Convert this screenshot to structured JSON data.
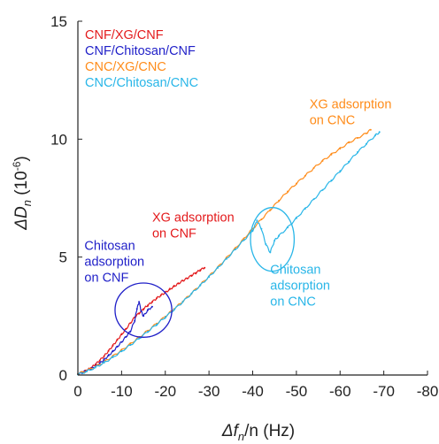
{
  "chart_data": {
    "type": "line",
    "xlabel": {
      "prefix": "Δf",
      "sub": "n",
      "suffix": "/n (Hz)"
    },
    "ylabel": {
      "prefix": "ΔD",
      "sub": "n",
      "suffix": " (10",
      "sup": "-6",
      "close": ")"
    },
    "xlim": [
      0,
      -80
    ],
    "ylim": [
      0,
      15
    ],
    "x_ticks": [
      0,
      -10,
      -20,
      -30,
      -40,
      -50,
      -60,
      -70,
      -80
    ],
    "x_tick_labels": [
      "0",
      "-10",
      "-20",
      "-30",
      "-40",
      "-50",
      "-60",
      "-70",
      "-80"
    ],
    "y_ticks": [
      0,
      5,
      10,
      15
    ],
    "y_tick_labels": [
      "0",
      "5",
      "10",
      "15"
    ],
    "grid": false,
    "legend_position": "top-left",
    "series": [
      {
        "name": "CNF/XG/CNF",
        "color": "#e31a1c",
        "x": [
          0,
          -1,
          -2,
          -3,
          -4,
          -5,
          -6,
          -7,
          -8,
          -9,
          -10,
          -11,
          -12,
          -13,
          -14,
          -15,
          -16,
          -17,
          -18,
          -19,
          -20,
          -21,
          -22,
          -23,
          -24,
          -25,
          -26,
          -27,
          -28,
          -29
        ],
        "y": [
          0.05,
          0.12,
          0.2,
          0.3,
          0.45,
          0.62,
          0.8,
          1.02,
          1.25,
          1.48,
          1.72,
          1.95,
          2.2,
          2.45,
          2.62,
          2.8,
          2.95,
          3.1,
          3.25,
          3.38,
          3.5,
          3.63,
          3.76,
          3.88,
          4.0,
          4.1,
          4.22,
          4.33,
          4.45,
          4.55
        ]
      },
      {
        "name": "CNF/Chitosan/CNF",
        "color": "#1f1fc8",
        "x": [
          0,
          -1,
          -2,
          -3,
          -4,
          -5,
          -6,
          -7,
          -8,
          -9,
          -10,
          -11,
          -12,
          -13,
          -13.5,
          -14,
          -14.5,
          -15,
          -16,
          -17
        ],
        "y": [
          0.05,
          0.1,
          0.18,
          0.26,
          0.36,
          0.5,
          0.65,
          0.82,
          1.0,
          1.2,
          1.4,
          1.62,
          1.85,
          2.3,
          2.8,
          3.1,
          2.7,
          2.5,
          2.75,
          2.9
        ]
      },
      {
        "name": "CNC/XG/CNC",
        "color": "#ff8c1a",
        "x": [
          0,
          -2,
          -4,
          -6,
          -8,
          -10,
          -12,
          -14,
          -16,
          -18,
          -20,
          -22,
          -24,
          -26,
          -28,
          -30,
          -32,
          -34,
          -36,
          -38,
          -40,
          -42,
          -44,
          -46,
          -48,
          -50,
          -52,
          -54,
          -56,
          -58,
          -60,
          -62,
          -64,
          -66,
          -67
        ],
        "y": [
          0.05,
          0.18,
          0.35,
          0.55,
          0.8,
          1.05,
          1.32,
          1.6,
          1.88,
          2.18,
          2.48,
          2.8,
          3.12,
          3.46,
          3.82,
          4.18,
          4.56,
          4.96,
          5.36,
          5.78,
          6.2,
          6.6,
          7.0,
          7.4,
          7.78,
          8.12,
          8.45,
          8.78,
          9.08,
          9.35,
          9.6,
          9.85,
          10.05,
          10.25,
          10.4
        ]
      },
      {
        "name": "CNC/Chitosan/CNC",
        "color": "#29b6e8",
        "x": [
          0,
          -2,
          -4,
          -6,
          -8,
          -10,
          -12,
          -14,
          -16,
          -18,
          -20,
          -22,
          -24,
          -26,
          -28,
          -30,
          -32,
          -34,
          -36,
          -38,
          -40,
          -41,
          -42,
          -43,
          -44,
          -45,
          -46,
          -48,
          -50,
          -52,
          -54,
          -56,
          -58,
          -60,
          -62,
          -64,
          -66,
          -68,
          -69
        ],
        "y": [
          0.02,
          0.15,
          0.32,
          0.52,
          0.75,
          1.0,
          1.27,
          1.55,
          1.84,
          2.14,
          2.45,
          2.77,
          3.1,
          3.45,
          3.8,
          4.16,
          4.54,
          4.92,
          5.32,
          5.72,
          6.12,
          6.55,
          6.2,
          5.55,
          5.2,
          5.7,
          5.9,
          6.25,
          6.65,
          7.05,
          7.45,
          7.85,
          8.25,
          8.65,
          9.05,
          9.45,
          9.8,
          10.15,
          10.3
        ]
      }
    ],
    "annotations": [
      {
        "lines": [
          "XG adsorption",
          "on CNC"
        ],
        "color": "#ff8c1a",
        "at": [
          -53,
          11.3
        ]
      },
      {
        "lines": [
          "XG adsorption",
          "on CNF"
        ],
        "color": "#e31a1c",
        "at": [
          -17,
          6.5
        ]
      },
      {
        "lines": [
          "Chitosan",
          "adsorption",
          "on CNF"
        ],
        "color": "#1f1fc8",
        "at": [
          -1.5,
          5.3
        ]
      },
      {
        "lines": [
          "Chitosan",
          "adsorption",
          "on CNC"
        ],
        "color": "#29b6e8",
        "at": [
          -44,
          4.3
        ]
      }
    ],
    "circled_regions": [
      {
        "color": "#1f1fc8",
        "center": [
          -15,
          2.75
        ],
        "rx": 6.5,
        "ry": 1.15
      },
      {
        "color": "#29b6e8",
        "center": [
          -44.5,
          5.75
        ],
        "rx": 5.0,
        "ry": 1.35
      }
    ]
  }
}
